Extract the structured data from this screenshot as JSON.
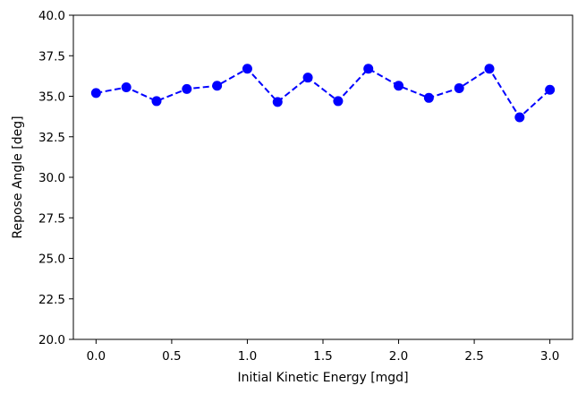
{
  "chart_data": {
    "type": "line",
    "title": "",
    "xlabel": "Initial Kinetic Energy [mgd]",
    "ylabel": "Repose Angle [deg]",
    "xlim": [
      -0.15,
      3.15
    ],
    "ylim": [
      20.0,
      40.0
    ],
    "xticks": [
      0.0,
      0.5,
      1.0,
      1.5,
      2.0,
      2.5,
      3.0
    ],
    "xtick_labels": [
      "0.0",
      "0.5",
      "1.0",
      "1.5",
      "2.0",
      "2.5",
      "3.0"
    ],
    "yticks": [
      20.0,
      22.5,
      25.0,
      27.5,
      30.0,
      32.5,
      35.0,
      37.5,
      40.0
    ],
    "ytick_labels": [
      "20.0",
      "22.5",
      "25.0",
      "27.5",
      "30.0",
      "32.5",
      "35.0",
      "37.5",
      "40.0"
    ],
    "grid": false,
    "legend": "none",
    "series": [
      {
        "color": "#0000ff",
        "line_style": "dashed",
        "marker": "circle",
        "x": [
          0.0,
          0.2,
          0.4,
          0.6,
          0.8,
          1.0,
          1.2,
          1.4,
          1.6,
          1.8,
          2.0,
          2.2,
          2.4,
          2.6,
          2.8,
          3.0
        ],
        "y": [
          35.2,
          35.55,
          34.7,
          35.45,
          35.65,
          36.7,
          34.65,
          36.15,
          34.7,
          36.7,
          35.65,
          34.9,
          35.5,
          36.7,
          33.7,
          35.4
        ]
      }
    ]
  }
}
